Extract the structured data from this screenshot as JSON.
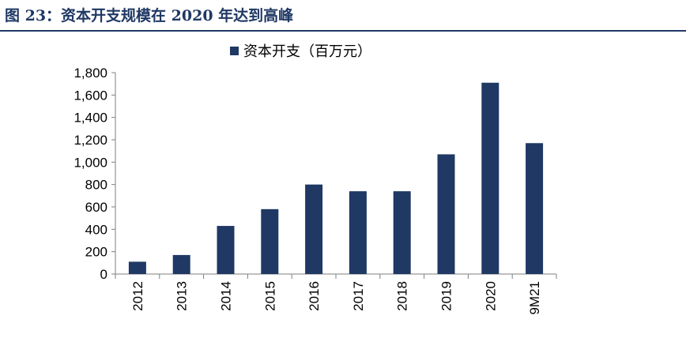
{
  "figure": {
    "title": "图 23：资本开支规模在 2020 年达到高峰"
  },
  "colors": {
    "bar": "#1f3864",
    "title": "#1f3864",
    "axis": "#7f7f7f"
  },
  "chart_data": {
    "type": "bar",
    "categories": [
      "2012",
      "2013",
      "2014",
      "2015",
      "2016",
      "2017",
      "2018",
      "2019",
      "2020",
      "9M21"
    ],
    "series": [
      {
        "name": "资本开支（百万元）",
        "values": [
          110,
          170,
          430,
          580,
          800,
          740,
          740,
          1070,
          1710,
          1170
        ]
      }
    ],
    "ylim": [
      0,
      1800
    ],
    "yticks": [
      "0",
      "200",
      "400",
      "600",
      "800",
      "1,000",
      "1,200",
      "1,400",
      "1,600",
      "1,800"
    ],
    "grid": false,
    "legend_position": "top-center",
    "xlabel": "",
    "ylabel": ""
  }
}
